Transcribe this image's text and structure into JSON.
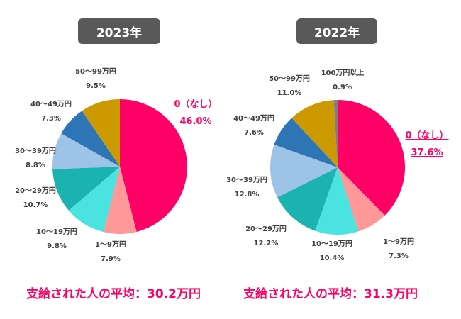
{
  "chart_data": [
    {
      "type": "pie",
      "title": "2023年",
      "average_text": "支給された人の平均：30.2万円",
      "highlight_color": "#FF0066",
      "slices": [
        {
          "label": "0（なし）",
          "value": 46.0,
          "value_label": "46.0%",
          "color": "#FF0066",
          "highlight": true
        },
        {
          "label": "1～9万円",
          "value": 7.9,
          "value_label": "7.9%",
          "color": "#FF9999"
        },
        {
          "label": "10～19万円",
          "value": 9.8,
          "value_label": "9.8%",
          "color": "#4BE3DF"
        },
        {
          "label": "20～29万円",
          "value": 10.7,
          "value_label": "10.7%",
          "color": "#1BB3B0"
        },
        {
          "label": "30～39万円",
          "value": 8.8,
          "value_label": "8.8%",
          "color": "#9DC3E6"
        },
        {
          "label": "40～49万円",
          "value": 7.3,
          "value_label": "7.3%",
          "color": "#2E75B6"
        },
        {
          "label": "50～99万円",
          "value": 9.5,
          "value_label": "9.5%",
          "color": "#CC9900"
        }
      ]
    },
    {
      "type": "pie",
      "title": "2022年",
      "average_text": "支給された人の平均：31.3万円",
      "highlight_color": "#FF0066",
      "slices": [
        {
          "label": "0（なし）",
          "value": 37.6,
          "value_label": "37.6%",
          "color": "#FF0066",
          "highlight": true
        },
        {
          "label": "1～9万円",
          "value": 7.3,
          "value_label": "7.3%",
          "color": "#FF9999"
        },
        {
          "label": "10～19万円",
          "value": 10.4,
          "value_label": "10.4%",
          "color": "#4BE3DF"
        },
        {
          "label": "20～29万円",
          "value": 12.2,
          "value_label": "12.2%",
          "color": "#1BB3B0"
        },
        {
          "label": "30～39万円",
          "value": 12.8,
          "value_label": "12.8%",
          "color": "#9DC3E6"
        },
        {
          "label": "40～49万円",
          "value": 7.6,
          "value_label": "7.6%",
          "color": "#2E75B6"
        },
        {
          "label": "50～99万円",
          "value": 11.0,
          "value_label": "11.0%",
          "color": "#CC9900"
        },
        {
          "label": "100万円以上",
          "value": 0.9,
          "value_label": "0.9%",
          "color": "#7F7F7F"
        }
      ]
    }
  ]
}
